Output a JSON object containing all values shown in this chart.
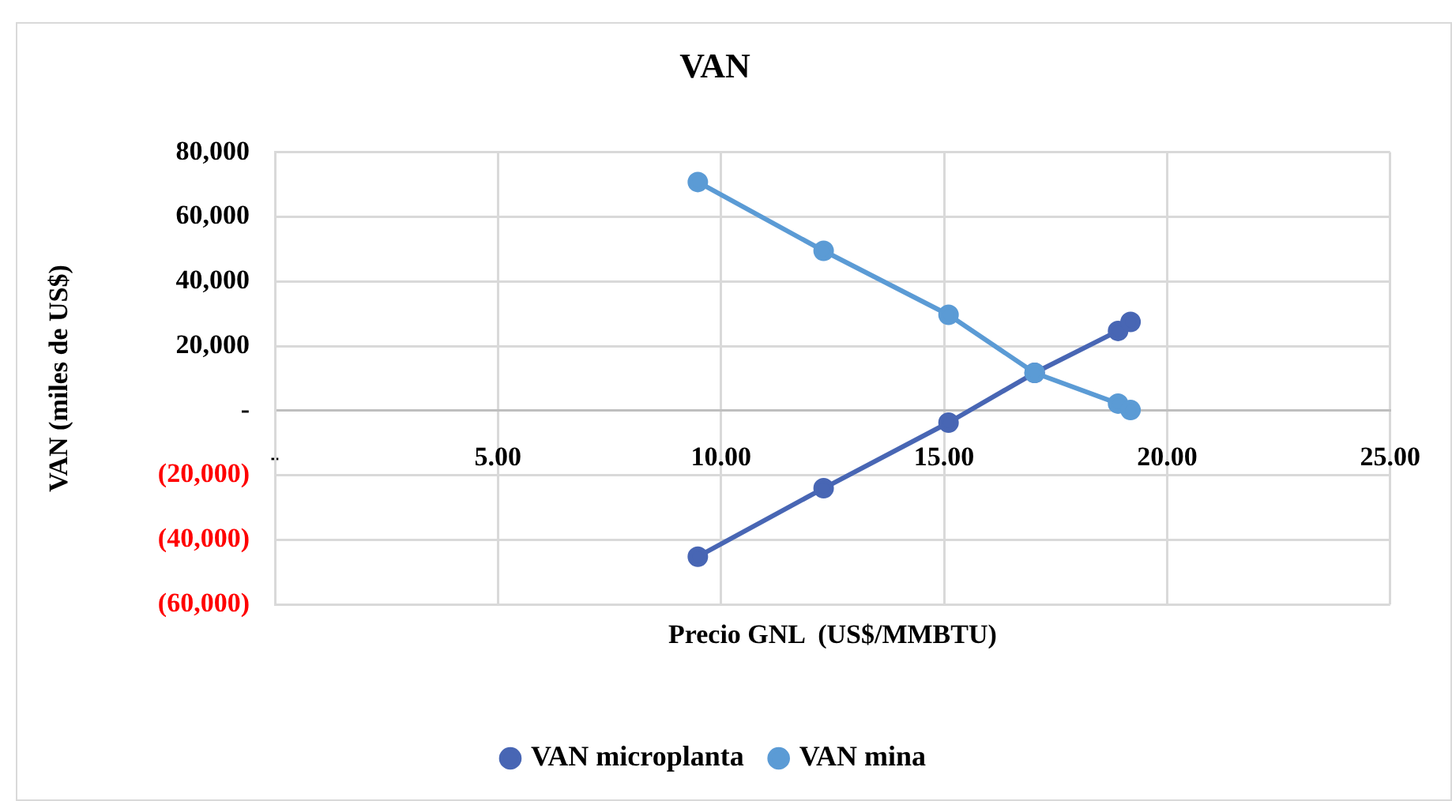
{
  "chart_data": {
    "type": "line",
    "title": "VAN",
    "xlabel": "Precio GNL  (US$/MMBTU)",
    "ylabel": "VAN (miles de US$)",
    "x": [
      9.48,
      12.3,
      15.1,
      17.03,
      18.9,
      19.18
    ],
    "series": [
      {
        "name": "VAN microplanta",
        "color": "#4866b4",
        "values": [
          -45200,
          -24000,
          -3700,
          11700,
          24700,
          27500
        ]
      },
      {
        "name": "VAN mina",
        "color": "#5b9bd5",
        "values": [
          70800,
          49500,
          29700,
          11700,
          2200,
          200
        ]
      }
    ],
    "xlim": [
      0,
      25
    ],
    "xticks": [
      {
        "value": 0,
        "label": "-"
      },
      {
        "value": 5,
        "label": "5.00"
      },
      {
        "value": 10,
        "label": "10.00"
      },
      {
        "value": 15,
        "label": "15.00"
      },
      {
        "value": 20,
        "label": "20.00"
      },
      {
        "value": 25,
        "label": "25.00"
      }
    ],
    "ylim": [
      -60000,
      80000
    ],
    "yticks": [
      {
        "value": -60000,
        "label": "(60,000)"
      },
      {
        "value": -40000,
        "label": "(40,000)"
      },
      {
        "value": -20000,
        "label": "(20,000)"
      },
      {
        "value": 0,
        "label": "-"
      },
      {
        "value": 20000,
        "label": "20,000"
      },
      {
        "value": 40000,
        "label": "40,000"
      },
      {
        "value": 60000,
        "label": "60,000"
      },
      {
        "value": 80000,
        "label": "80,000"
      }
    ],
    "grid": true,
    "legend": "bottom",
    "marker": "circle",
    "line_style": "solid"
  }
}
